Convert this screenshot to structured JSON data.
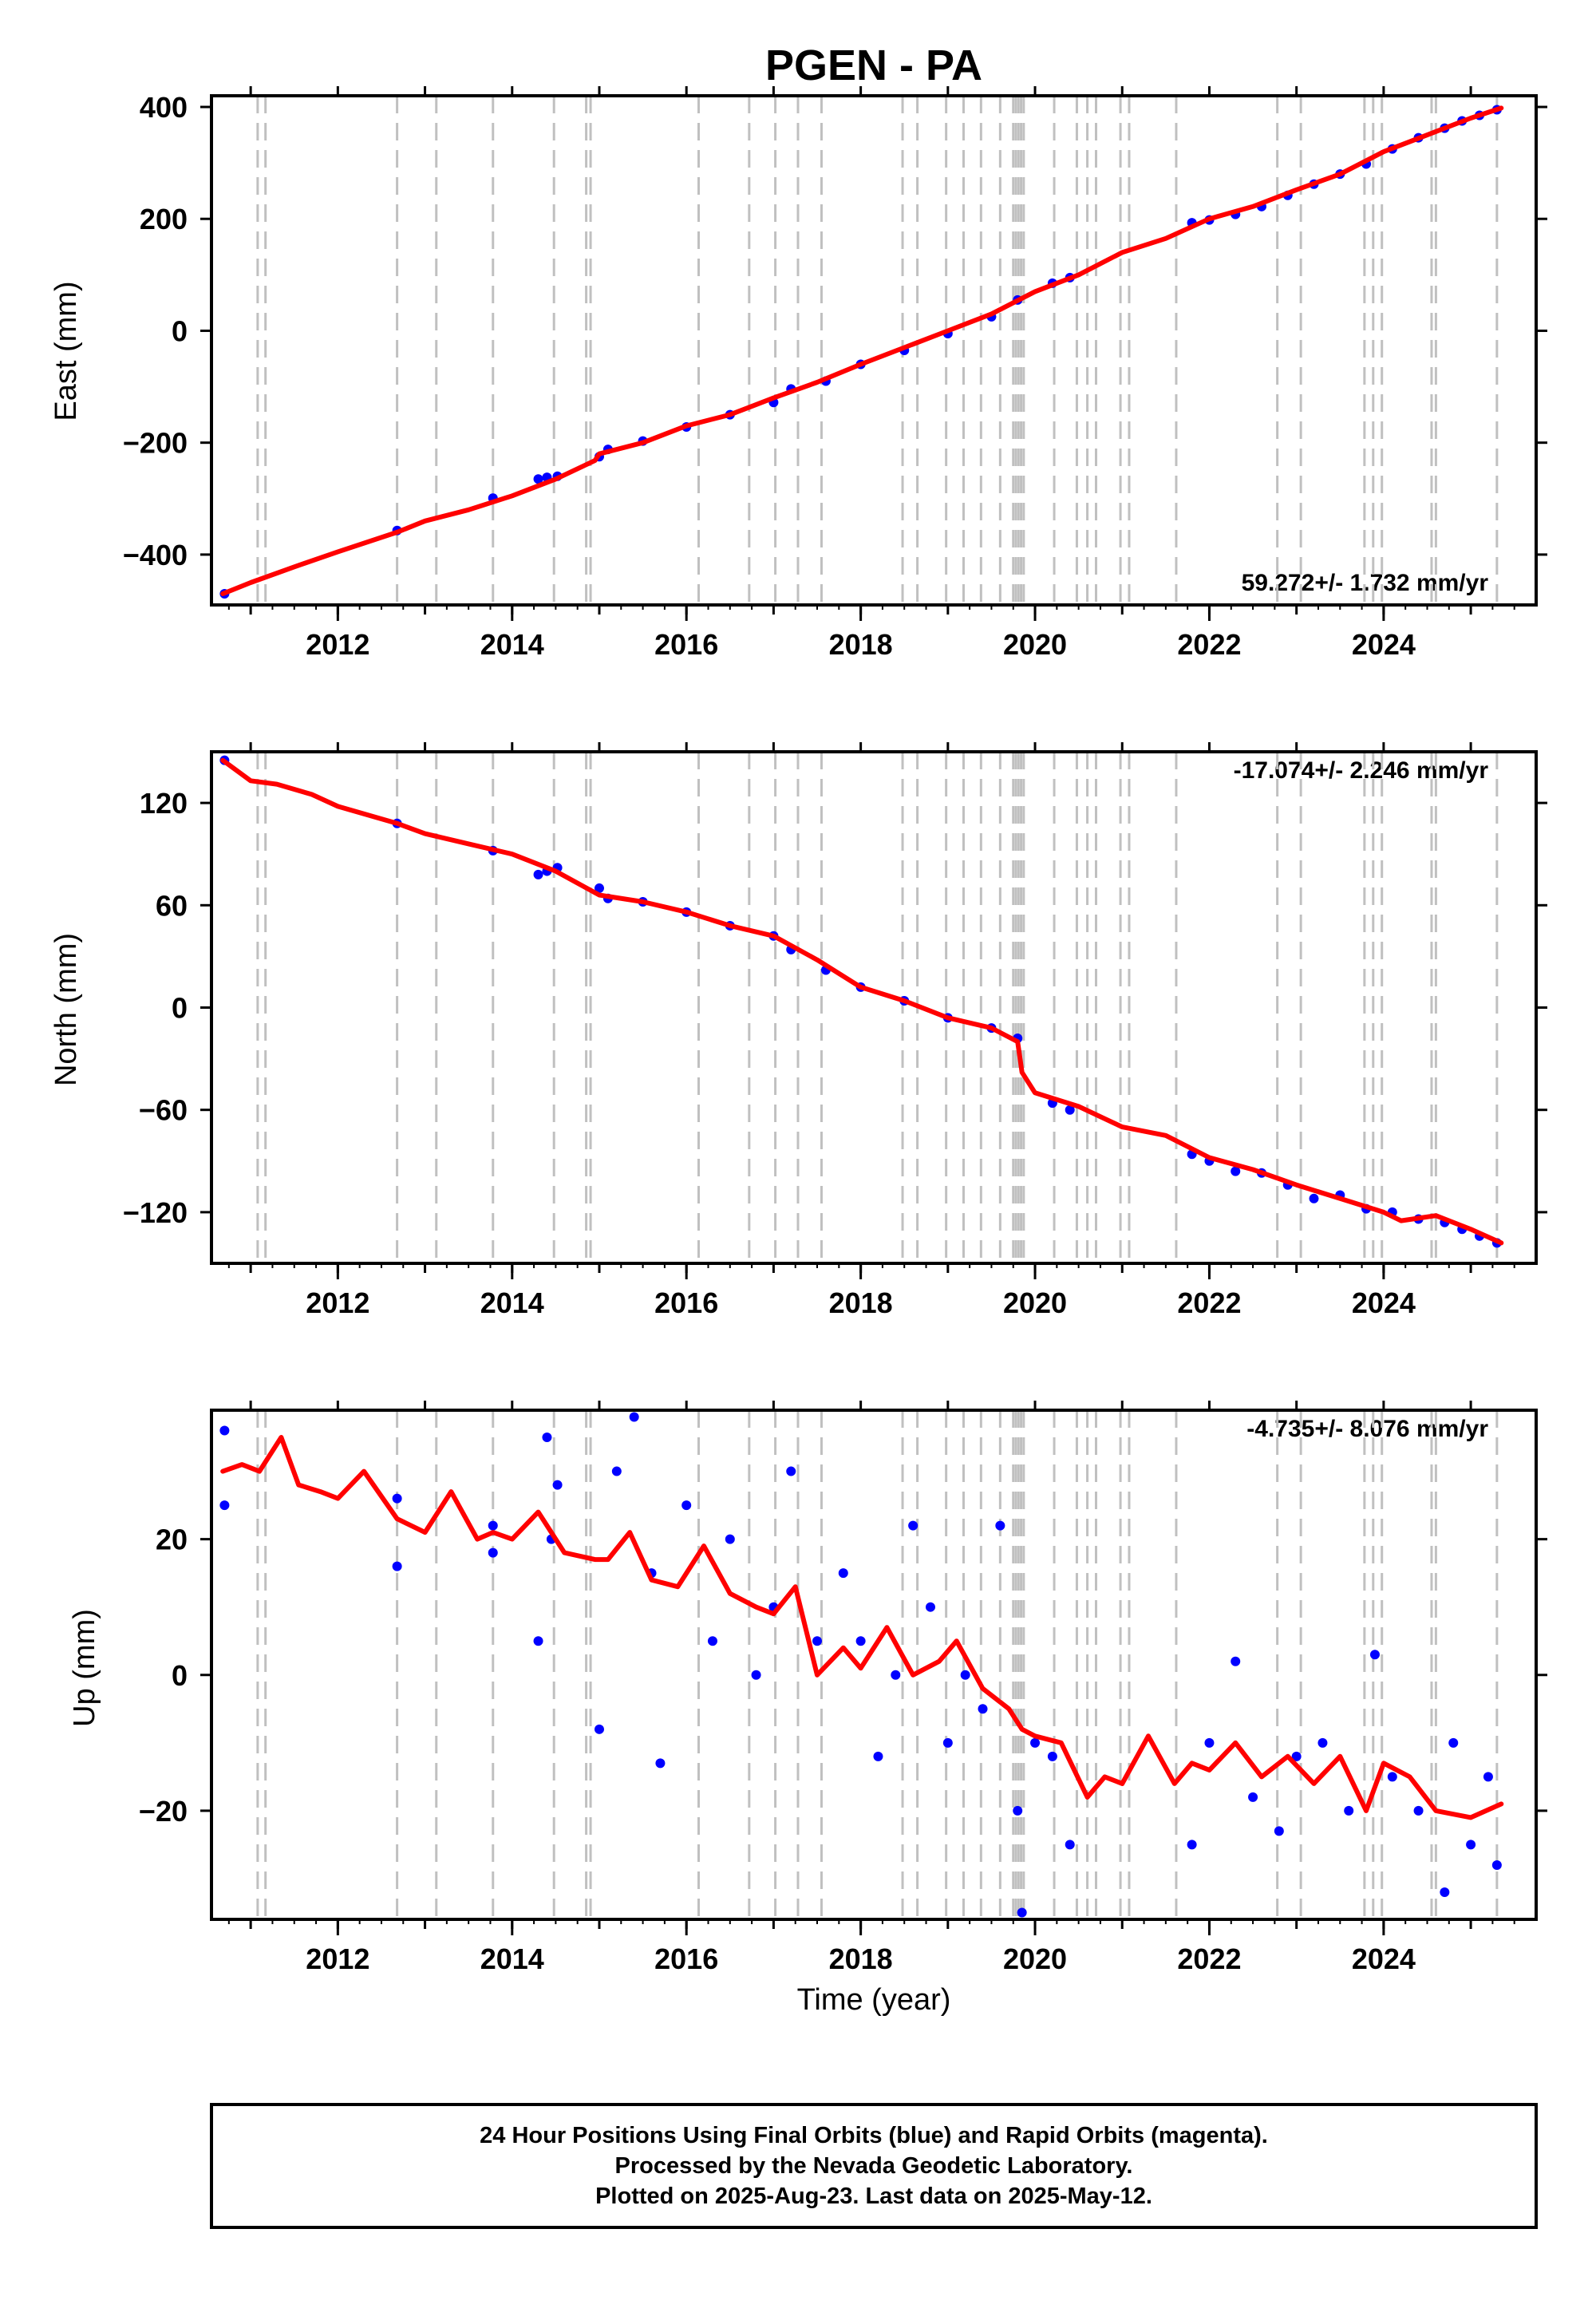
{
  "figure": {
    "title": "PGEN - PA",
    "x_axis_label": "Time (year)",
    "x_tick_labels": [
      "2012",
      "2014",
      "2016",
      "2018",
      "2020",
      "2022",
      "2024"
    ],
    "footer_lines": [
      "24 Hour Positions Using Final Orbits (blue) and Rapid Orbits (magenta).",
      "Processed by the Nevada Geodetic Laboratory.",
      "Plotted on 2025-Aug-23. Last data on 2025-May-12."
    ],
    "colors": {
      "final_orbits": "#0000ff",
      "model_fit": "#ff0000",
      "event_lines": "#c0c0c0",
      "axes": "#000000"
    }
  },
  "chart_data": [
    {
      "type": "scatter",
      "component": "east",
      "ylabel": "East (mm)",
      "rate_label": "59.272+/- 1.732 mm/yr",
      "rate_position": "bottom-right",
      "xlim": [
        2010.55,
        2025.75
      ],
      "ylim": [
        -490,
        420
      ],
      "y_ticks": [
        400,
        200,
        0,
        -200,
        -400
      ],
      "y_tick_labels": [
        "400",
        "200",
        "0",
        "−200",
        "−400"
      ],
      "points": [
        [
          2010.7,
          -470
        ],
        [
          2012.68,
          -357
        ],
        [
          2013.78,
          -299
        ],
        [
          2014.3,
          -265
        ],
        [
          2014.4,
          -262
        ],
        [
          2014.52,
          -260
        ],
        [
          2015.0,
          -225
        ],
        [
          2015.1,
          -212
        ],
        [
          2015.5,
          -197
        ],
        [
          2016.0,
          -172
        ],
        [
          2016.5,
          -150
        ],
        [
          2017.0,
          -128
        ],
        [
          2017.2,
          -104
        ],
        [
          2017.6,
          -90
        ],
        [
          2018.0,
          -60
        ],
        [
          2018.5,
          -35
        ],
        [
          2019.0,
          -5
        ],
        [
          2019.5,
          25
        ],
        [
          2019.8,
          55
        ],
        [
          2020.2,
          85
        ],
        [
          2020.4,
          95
        ],
        [
          2021.8,
          193
        ],
        [
          2022.0,
          198
        ],
        [
          2022.3,
          208
        ],
        [
          2022.6,
          222
        ],
        [
          2022.9,
          242
        ],
        [
          2023.2,
          262
        ],
        [
          2023.5,
          280
        ],
        [
          2023.8,
          298
        ],
        [
          2024.1,
          325
        ],
        [
          2024.4,
          345
        ],
        [
          2024.7,
          362
        ],
        [
          2024.9,
          375
        ],
        [
          2025.1,
          385
        ],
        [
          2025.3,
          395
        ]
      ],
      "model": [
        [
          2010.68,
          -470
        ],
        [
          2011.0,
          -450
        ],
        [
          2011.5,
          -422
        ],
        [
          2012.0,
          -395
        ],
        [
          2012.68,
          -360
        ],
        [
          2013.0,
          -340
        ],
        [
          2013.5,
          -320
        ],
        [
          2014.0,
          -295
        ],
        [
          2014.5,
          -265
        ],
        [
          2014.95,
          -232
        ],
        [
          2015.0,
          -220
        ],
        [
          2015.5,
          -200
        ],
        [
          2016.0,
          -170
        ],
        [
          2016.5,
          -150
        ],
        [
          2017.0,
          -120
        ],
        [
          2017.5,
          -92
        ],
        [
          2018.0,
          -60
        ],
        [
          2018.5,
          -30
        ],
        [
          2019.0,
          0
        ],
        [
          2019.5,
          30
        ],
        [
          2020.0,
          70
        ],
        [
          2020.5,
          100
        ],
        [
          2021.0,
          140
        ],
        [
          2021.5,
          165
        ],
        [
          2022.0,
          200
        ],
        [
          2022.5,
          222
        ],
        [
          2023.0,
          252
        ],
        [
          2023.5,
          280
        ],
        [
          2024.0,
          320
        ],
        [
          2024.5,
          350
        ],
        [
          2025.0,
          380
        ],
        [
          2025.35,
          398
        ]
      ]
    },
    {
      "type": "scatter",
      "component": "north",
      "ylabel": "North (mm)",
      "rate_label": "-17.074+/- 2.246 mm/yr",
      "rate_position": "top-right",
      "xlim": [
        2010.55,
        2025.75
      ],
      "ylim": [
        -150,
        150
      ],
      "y_ticks": [
        120,
        60,
        0,
        -60,
        -120
      ],
      "y_tick_labels": [
        "120",
        "60",
        "0",
        "−60",
        "−120"
      ],
      "points": [
        [
          2010.7,
          145
        ],
        [
          2012.68,
          108
        ],
        [
          2013.78,
          92
        ],
        [
          2014.3,
          78
        ],
        [
          2014.4,
          80
        ],
        [
          2014.52,
          82
        ],
        [
          2015.0,
          70
        ],
        [
          2015.1,
          64
        ],
        [
          2015.5,
          62
        ],
        [
          2016.0,
          56
        ],
        [
          2016.5,
          48
        ],
        [
          2017.0,
          42
        ],
        [
          2017.2,
          34
        ],
        [
          2017.6,
          22
        ],
        [
          2018.0,
          12
        ],
        [
          2018.5,
          4
        ],
        [
          2019.0,
          -6
        ],
        [
          2019.5,
          -12
        ],
        [
          2019.8,
          -18
        ],
        [
          2020.2,
          -56
        ],
        [
          2020.4,
          -60
        ],
        [
          2021.8,
          -86
        ],
        [
          2022.0,
          -90
        ],
        [
          2022.3,
          -96
        ],
        [
          2022.6,
          -97
        ],
        [
          2022.9,
          -104
        ],
        [
          2023.2,
          -112
        ],
        [
          2023.5,
          -110
        ],
        [
          2023.8,
          -118
        ],
        [
          2024.1,
          -120
        ],
        [
          2024.4,
          -124
        ],
        [
          2024.7,
          -126
        ],
        [
          2024.9,
          -130
        ],
        [
          2025.1,
          -134
        ],
        [
          2025.3,
          -138
        ]
      ],
      "model": [
        [
          2010.68,
          145
        ],
        [
          2011.0,
          133
        ],
        [
          2011.3,
          131
        ],
        [
          2011.7,
          125
        ],
        [
          2012.0,
          118
        ],
        [
          2012.68,
          108
        ],
        [
          2013.0,
          102
        ],
        [
          2013.5,
          96
        ],
        [
          2014.0,
          90
        ],
        [
          2014.5,
          80
        ],
        [
          2015.0,
          66
        ],
        [
          2015.5,
          62
        ],
        [
          2016.0,
          56
        ],
        [
          2016.5,
          48
        ],
        [
          2017.0,
          42
        ],
        [
          2017.5,
          28
        ],
        [
          2018.0,
          12
        ],
        [
          2018.5,
          4
        ],
        [
          2019.0,
          -6
        ],
        [
          2019.5,
          -12
        ],
        [
          2019.8,
          -20
        ],
        [
          2019.85,
          -38
        ],
        [
          2020.0,
          -50
        ],
        [
          2020.5,
          -58
        ],
        [
          2021.0,
          -70
        ],
        [
          2021.5,
          -75
        ],
        [
          2022.0,
          -88
        ],
        [
          2022.5,
          -95
        ],
        [
          2023.0,
          -104
        ],
        [
          2023.5,
          -112
        ],
        [
          2024.0,
          -120
        ],
        [
          2024.2,
          -125
        ],
        [
          2024.6,
          -122
        ],
        [
          2025.0,
          -130
        ],
        [
          2025.35,
          -138
        ]
      ]
    },
    {
      "type": "scatter",
      "component": "up",
      "ylabel": "Up (mm)",
      "rate_label": "-4.735+/- 8.076 mm/yr",
      "rate_position": "top-right",
      "xlim": [
        2010.55,
        2025.75
      ],
      "ylim": [
        -36,
        39
      ],
      "y_ticks": [
        20,
        0,
        -20
      ],
      "y_tick_labels": [
        "20",
        "0",
        "−20"
      ],
      "points": [
        [
          2010.7,
          36
        ],
        [
          2010.7,
          25
        ],
        [
          2012.68,
          26
        ],
        [
          2012.68,
          16
        ],
        [
          2013.78,
          18
        ],
        [
          2013.78,
          22
        ],
        [
          2014.3,
          5
        ],
        [
          2014.4,
          35
        ],
        [
          2014.45,
          20
        ],
        [
          2014.52,
          28
        ],
        [
          2015.0,
          -8
        ],
        [
          2015.2,
          30
        ],
        [
          2015.4,
          38
        ],
        [
          2015.6,
          15
        ],
        [
          2015.7,
          -13
        ],
        [
          2016.0,
          25
        ],
        [
          2016.3,
          5
        ],
        [
          2016.5,
          20
        ],
        [
          2016.8,
          0
        ],
        [
          2017.0,
          10
        ],
        [
          2017.2,
          30
        ],
        [
          2017.5,
          5
        ],
        [
          2017.8,
          15
        ],
        [
          2018.0,
          5
        ],
        [
          2018.2,
          -12
        ],
        [
          2018.4,
          0
        ],
        [
          2018.6,
          22
        ],
        [
          2018.8,
          10
        ],
        [
          2019.0,
          -10
        ],
        [
          2019.2,
          0
        ],
        [
          2019.4,
          -5
        ],
        [
          2019.6,
          22
        ],
        [
          2019.8,
          -20
        ],
        [
          2019.85,
          -35
        ],
        [
          2020.0,
          -10
        ],
        [
          2020.2,
          -12
        ],
        [
          2020.4,
          -25
        ],
        [
          2021.8,
          -25
        ],
        [
          2022.0,
          -10
        ],
        [
          2022.3,
          2
        ],
        [
          2022.5,
          -18
        ],
        [
          2022.8,
          -23
        ],
        [
          2023.0,
          -12
        ],
        [
          2023.3,
          -10
        ],
        [
          2023.6,
          -20
        ],
        [
          2023.9,
          3
        ],
        [
          2024.1,
          -15
        ],
        [
          2024.4,
          -20
        ],
        [
          2024.7,
          -32
        ],
        [
          2024.8,
          -10
        ],
        [
          2025.0,
          -25
        ],
        [
          2025.2,
          -15
        ],
        [
          2025.3,
          -28
        ]
      ],
      "model": [
        [
          2010.68,
          30
        ],
        [
          2010.9,
          31
        ],
        [
          2011.1,
          30
        ],
        [
          2011.35,
          35
        ],
        [
          2011.55,
          28
        ],
        [
          2011.8,
          27
        ],
        [
          2012.0,
          26
        ],
        [
          2012.3,
          30
        ],
        [
          2012.68,
          23
        ],
        [
          2013.0,
          21
        ],
        [
          2013.3,
          27
        ],
        [
          2013.6,
          20
        ],
        [
          2013.78,
          21
        ],
        [
          2014.0,
          20
        ],
        [
          2014.3,
          24
        ],
        [
          2014.6,
          18
        ],
        [
          2014.95,
          17
        ],
        [
          2015.1,
          17
        ],
        [
          2015.35,
          21
        ],
        [
          2015.6,
          14
        ],
        [
          2015.9,
          13
        ],
        [
          2016.2,
          19
        ],
        [
          2016.5,
          12
        ],
        [
          2016.8,
          10
        ],
        [
          2017.0,
          9
        ],
        [
          2017.25,
          13
        ],
        [
          2017.5,
          0
        ],
        [
          2017.8,
          4
        ],
        [
          2018.0,
          1
        ],
        [
          2018.3,
          7
        ],
        [
          2018.6,
          0
        ],
        [
          2018.9,
          2
        ],
        [
          2019.1,
          5
        ],
        [
          2019.4,
          -2
        ],
        [
          2019.7,
          -5
        ],
        [
          2019.85,
          -8
        ],
        [
          2020.0,
          -9
        ],
        [
          2020.3,
          -10
        ],
        [
          2020.6,
          -18
        ],
        [
          2020.8,
          -15
        ],
        [
          2021.0,
          -16
        ],
        [
          2021.3,
          -9
        ],
        [
          2021.6,
          -16
        ],
        [
          2021.8,
          -13
        ],
        [
          2022.0,
          -14
        ],
        [
          2022.3,
          -10
        ],
        [
          2022.6,
          -15
        ],
        [
          2022.9,
          -12
        ],
        [
          2023.2,
          -16
        ],
        [
          2023.5,
          -12
        ],
        [
          2023.8,
          -20
        ],
        [
          2024.0,
          -13
        ],
        [
          2024.3,
          -15
        ],
        [
          2024.6,
          -20
        ],
        [
          2025.0,
          -21
        ],
        [
          2025.35,
          -19
        ]
      ]
    }
  ],
  "event_lines_years": [
    2011.08,
    2011.17,
    2012.68,
    2013.13,
    2013.78,
    2014.48,
    2014.85,
    2014.9,
    2016.14,
    2016.72,
    2017.02,
    2017.28,
    2017.55,
    2018.48,
    2018.65,
    2018.98,
    2019.18,
    2019.38,
    2019.6,
    2019.75,
    2019.78,
    2019.81,
    2019.84,
    2019.87,
    2020.22,
    2020.48,
    2020.6,
    2020.7,
    2020.98,
    2021.08,
    2021.62,
    2022.78,
    2023.05,
    2023.78,
    2023.88,
    2023.98,
    2024.55,
    2024.6,
    2025.3
  ]
}
